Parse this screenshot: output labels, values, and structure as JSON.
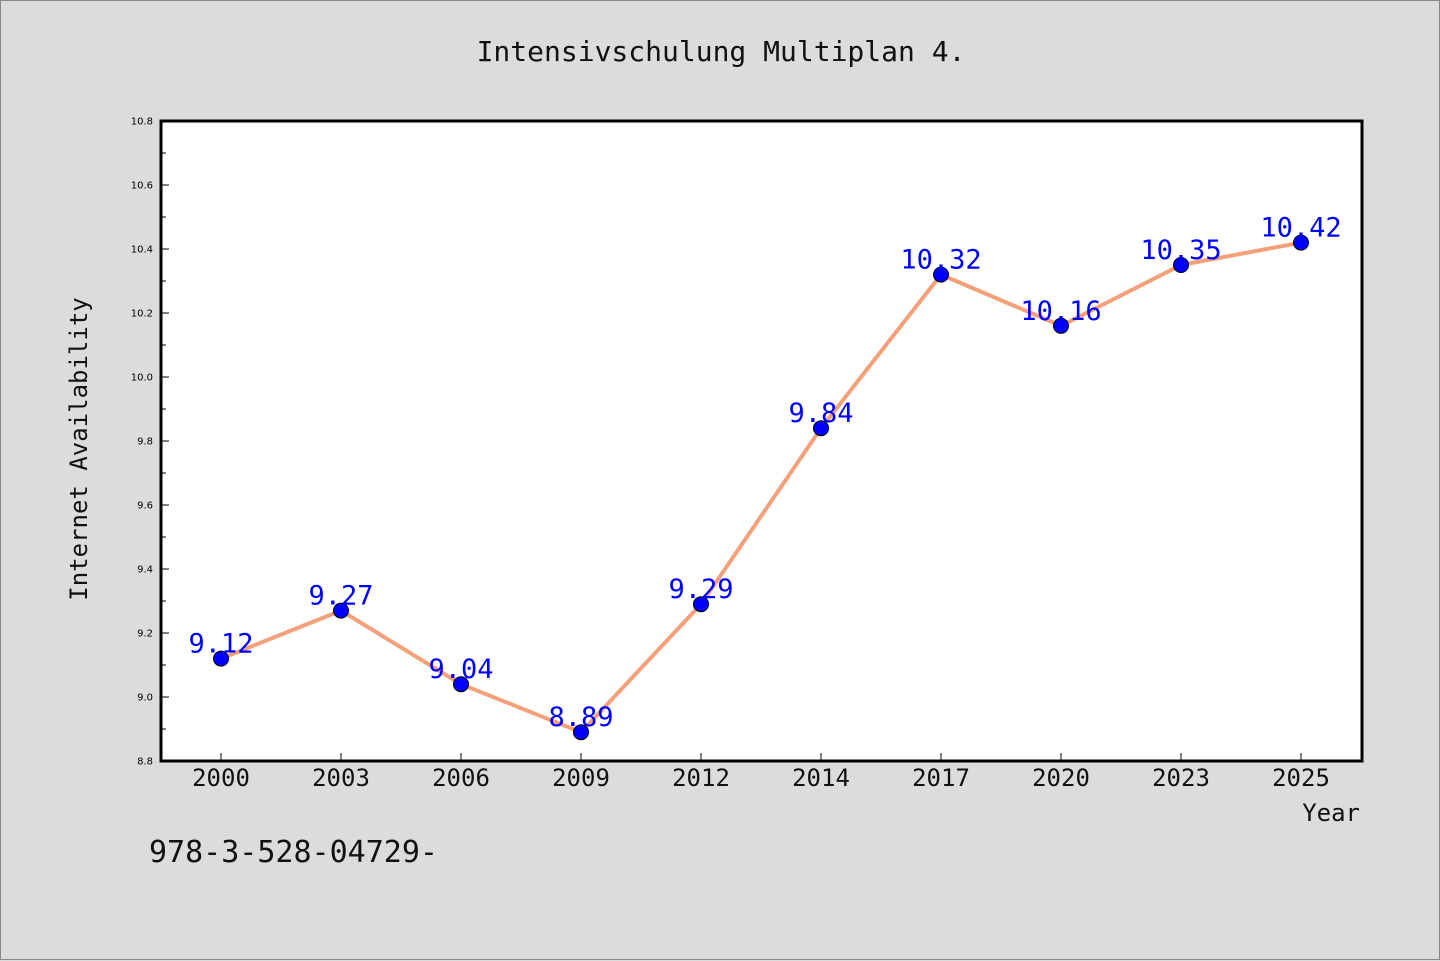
{
  "chart_data": {
    "type": "line",
    "title": "Intensivschulung Multiplan 4.",
    "xlabel": "Year",
    "ylabel": "Internet Availability",
    "categories": [
      "2000",
      "2003",
      "2006",
      "2009",
      "2012",
      "2014",
      "2017",
      "2020",
      "2023",
      "2025"
    ],
    "series": [
      {
        "values": [
          9.12,
          9.27,
          9.04,
          8.89,
          9.29,
          9.84,
          10.32,
          10.16,
          10.35,
          10.42
        ]
      }
    ],
    "ylim": [
      8.8,
      10.8
    ],
    "yticks": [
      "8.8",
      "9.0",
      "9.2",
      "9.4",
      "9.6",
      "9.8",
      "10.0",
      "10.2",
      "10.4",
      "10.6",
      "10.8"
    ],
    "grid": false,
    "data_labels": true,
    "colors": {
      "line": "#f4a07a",
      "marker": "#0000ff",
      "label": "#0000ff",
      "plot_background": "#ffffff",
      "figure_background": "#dcdcdc"
    }
  },
  "footnote": "978-3-528-04729-"
}
